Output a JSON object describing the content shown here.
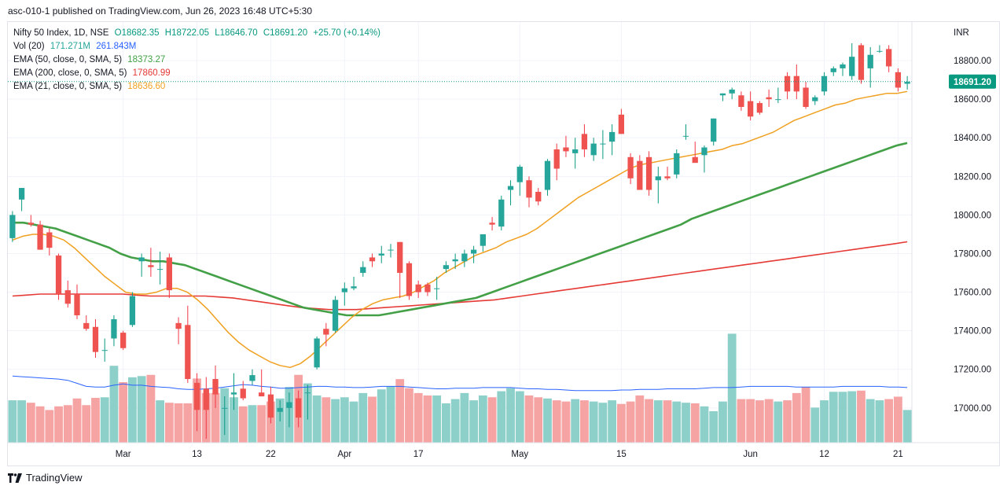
{
  "header": {
    "text": "asc-010-1 published on TradingView.com, Jun 26, 2023 16:48 UTC+5:30"
  },
  "footer": {
    "brand": "TradingView",
    "logo_icon": "tradingview-logo-icon"
  },
  "legend": {
    "symbol": {
      "label": "Nifty 50 Index, 1D, NSE",
      "open": "O18682.35",
      "high": "H18722.05",
      "low": "L18646.70",
      "close": "C18691.20",
      "change": "+25.70 (+0.14%)"
    },
    "vol": {
      "label": "Vol (20)",
      "value1": "171.271M",
      "value2": "261.843M"
    },
    "ema50": {
      "label": "EMA (50, close, 0, SMA, 5)",
      "value": "18373.27"
    },
    "ema200": {
      "label": "EMA (200, close, 0, SMA, 5)",
      "value": "17860.99"
    },
    "ema21": {
      "label": "EMA (21, close, 0, SMA, 5)",
      "value": "18636.60"
    }
  },
  "colors": {
    "up": "#26a69a",
    "down": "#ef5350",
    "up_wick": "#089981",
    "down_wick": "#f23645",
    "vol_up": "#8dcfc9",
    "vol_down": "#f5a3a3",
    "ema50": "#43a047",
    "ema200": "#e53935",
    "ema21": "#f0a020",
    "vol_ma": "#2962ff",
    "price_label_bg": "#089981"
  },
  "chart_data": {
    "type": "candlestick",
    "currency": "INR",
    "ylim": [
      16820,
      19000
    ],
    "y_ticks": [
      17000,
      17200,
      17400,
      17600,
      17800,
      18000,
      18200,
      18400,
      18600,
      18800
    ],
    "y_tick_labels": [
      "17000.00",
      "17200.00",
      "17400.00",
      "17600.00",
      "17800.00",
      "18000.00",
      "18200.00",
      "18400.00",
      "18600.00",
      "18800.00"
    ],
    "last_price": 18691.2,
    "last_price_label": "18691.20",
    "x_labels": [
      {
        "index": 12,
        "label": "Mar"
      },
      {
        "index": 20,
        "label": "13"
      },
      {
        "index": 28,
        "label": "22"
      },
      {
        "index": 36,
        "label": "Apr"
      },
      {
        "index": 44,
        "label": "17"
      },
      {
        "index": 55,
        "label": "May"
      },
      {
        "index": 66,
        "label": "15"
      },
      {
        "index": 80,
        "label": "Jun"
      },
      {
        "index": 88,
        "label": "12"
      },
      {
        "index": 96,
        "label": "21"
      }
    ],
    "candles": [
      {
        "o": 17880,
        "h": 18020,
        "l": 17860,
        "c": 18000,
        "v": 0.7
      },
      {
        "o": 18080,
        "h": 18140,
        "l": 18020,
        "c": 18140,
        "v": 0.7
      },
      {
        "o": 17960,
        "h": 18000,
        "l": 17940,
        "c": 17950,
        "v": 0.66
      },
      {
        "o": 17950,
        "h": 17970,
        "l": 17820,
        "c": 17820,
        "v": 0.6
      },
      {
        "o": 17910,
        "h": 17930,
        "l": 17790,
        "c": 17830,
        "v": 0.54
      },
      {
        "o": 17790,
        "h": 17800,
        "l": 17560,
        "c": 17590,
        "v": 0.6
      },
      {
        "o": 17610,
        "h": 17660,
        "l": 17520,
        "c": 17540,
        "v": 0.62
      },
      {
        "o": 17590,
        "h": 17640,
        "l": 17460,
        "c": 17480,
        "v": 0.73
      },
      {
        "o": 17440,
        "h": 17480,
        "l": 17400,
        "c": 17410,
        "v": 0.62
      },
      {
        "o": 17420,
        "h": 17460,
        "l": 17260,
        "c": 17290,
        "v": 0.74
      },
      {
        "o": 17300,
        "h": 17360,
        "l": 17240,
        "c": 17300,
        "v": 0.75
      },
      {
        "o": 17360,
        "h": 17480,
        "l": 17320,
        "c": 17460,
        "v": 1.27
      },
      {
        "o": 17390,
        "h": 17400,
        "l": 17300,
        "c": 17310,
        "v": 1.0
      },
      {
        "o": 17430,
        "h": 17600,
        "l": 17420,
        "c": 17580,
        "v": 1.08
      },
      {
        "o": 17760,
        "h": 17800,
        "l": 17680,
        "c": 17780,
        "v": 1.1
      },
      {
        "o": 17740,
        "h": 17830,
        "l": 17680,
        "c": 17730,
        "v": 1.12
      },
      {
        "o": 17720,
        "h": 17810,
        "l": 17640,
        "c": 17720,
        "v": 0.7
      },
      {
        "o": 17780,
        "h": 17800,
        "l": 17570,
        "c": 17610,
        "v": 0.66
      },
      {
        "o": 17440,
        "h": 17470,
        "l": 17330,
        "c": 17410,
        "v": 0.65
      },
      {
        "o": 17430,
        "h": 17530,
        "l": 17130,
        "c": 17150,
        "v": 0.65
      },
      {
        "o": 17130,
        "h": 17180,
        "l": 16880,
        "c": 16990,
        "v": 1.06
      },
      {
        "o": 17100,
        "h": 17160,
        "l": 16840,
        "c": 16990,
        "v": 0.82
      },
      {
        "o": 17150,
        "h": 17220,
        "l": 17000,
        "c": 17070,
        "v": 0.82
      },
      {
        "o": 17000,
        "h": 17060,
        "l": 16860,
        "c": 17000,
        "v": 0.9
      },
      {
        "o": 17070,
        "h": 17180,
        "l": 16990,
        "c": 17080,
        "v": 0.75
      },
      {
        "o": 17100,
        "h": 17140,
        "l": 17040,
        "c": 17050,
        "v": 0.6
      },
      {
        "o": 17140,
        "h": 17200,
        "l": 17120,
        "c": 17170,
        "v": 0.62
      },
      {
        "o": 17080,
        "h": 17200,
        "l": 17060,
        "c": 17060,
        "v": 0.62
      },
      {
        "o": 17070,
        "h": 17110,
        "l": 16920,
        "c": 16950,
        "v": 0.68
      },
      {
        "o": 16980,
        "h": 17040,
        "l": 16930,
        "c": 17000,
        "v": 0.73
      },
      {
        "o": 17000,
        "h": 17080,
        "l": 16900,
        "c": 17030,
        "v": 0.92
      },
      {
        "o": 17050,
        "h": 17090,
        "l": 16900,
        "c": 16950,
        "v": 1.12
      },
      {
        "o": 17080,
        "h": 17120,
        "l": 16940,
        "c": 17080,
        "v": 0.98
      },
      {
        "o": 17210,
        "h": 17370,
        "l": 17200,
        "c": 17360,
        "v": 0.78
      },
      {
        "o": 17410,
        "h": 17440,
        "l": 17320,
        "c": 17380,
        "v": 0.75
      },
      {
        "o": 17400,
        "h": 17580,
        "l": 17390,
        "c": 17560,
        "v": 0.72
      },
      {
        "o": 17600,
        "h": 17650,
        "l": 17530,
        "c": 17620,
        "v": 0.75
      },
      {
        "o": 17620,
        "h": 17680,
        "l": 17610,
        "c": 17630,
        "v": 0.68
      },
      {
        "o": 17700,
        "h": 17760,
        "l": 17680,
        "c": 17730,
        "v": 0.82
      },
      {
        "o": 17780,
        "h": 17800,
        "l": 17730,
        "c": 17760,
        "v": 0.76
      },
      {
        "o": 17790,
        "h": 17840,
        "l": 17750,
        "c": 17800,
        "v": 0.88
      },
      {
        "o": 17820,
        "h": 17850,
        "l": 17780,
        "c": 17820,
        "v": 0.93
      },
      {
        "o": 17860,
        "h": 17860,
        "l": 17570,
        "c": 17700,
        "v": 1.05
      },
      {
        "o": 17750,
        "h": 17760,
        "l": 17560,
        "c": 17580,
        "v": 0.9
      },
      {
        "o": 17640,
        "h": 17660,
        "l": 17570,
        "c": 17600,
        "v": 0.82
      },
      {
        "o": 17640,
        "h": 17650,
        "l": 17580,
        "c": 17600,
        "v": 0.78
      },
      {
        "o": 17620,
        "h": 17680,
        "l": 17560,
        "c": 17620,
        "v": 0.78
      },
      {
        "o": 17720,
        "h": 17760,
        "l": 17700,
        "c": 17740,
        "v": 0.65
      },
      {
        "o": 17760,
        "h": 17800,
        "l": 17720,
        "c": 17770,
        "v": 0.72
      },
      {
        "o": 17760,
        "h": 17820,
        "l": 17730,
        "c": 17800,
        "v": 0.82
      },
      {
        "o": 17800,
        "h": 17840,
        "l": 17750,
        "c": 17820,
        "v": 0.7
      },
      {
        "o": 17840,
        "h": 17900,
        "l": 17810,
        "c": 17900,
        "v": 0.78
      },
      {
        "o": 17960,
        "h": 17990,
        "l": 17920,
        "c": 17950,
        "v": 0.75
      },
      {
        "o": 17940,
        "h": 18100,
        "l": 17920,
        "c": 18080,
        "v": 0.85
      },
      {
        "o": 18130,
        "h": 18180,
        "l": 18050,
        "c": 18150,
        "v": 0.9
      },
      {
        "o": 18170,
        "h": 18260,
        "l": 18100,
        "c": 18250,
        "v": 0.85
      },
      {
        "o": 18180,
        "h": 18200,
        "l": 18040,
        "c": 18090,
        "v": 0.78
      },
      {
        "o": 18120,
        "h": 18140,
        "l": 18050,
        "c": 18070,
        "v": 0.75
      },
      {
        "o": 18130,
        "h": 18290,
        "l": 18100,
        "c": 18280,
        "v": 0.73
      },
      {
        "o": 18340,
        "h": 18370,
        "l": 18180,
        "c": 18240,
        "v": 0.7
      },
      {
        "o": 18350,
        "h": 18410,
        "l": 18300,
        "c": 18330,
        "v": 0.68
      },
      {
        "o": 18320,
        "h": 18400,
        "l": 18240,
        "c": 18340,
        "v": 0.72
      },
      {
        "o": 18420,
        "h": 18470,
        "l": 18300,
        "c": 18340,
        "v": 0.7
      },
      {
        "o": 18310,
        "h": 18400,
        "l": 18280,
        "c": 18370,
        "v": 0.68
      },
      {
        "o": 18370,
        "h": 18440,
        "l": 18290,
        "c": 18370,
        "v": 0.66
      },
      {
        "o": 18380,
        "h": 18470,
        "l": 18310,
        "c": 18430,
        "v": 0.7
      },
      {
        "o": 18520,
        "h": 18550,
        "l": 18420,
        "c": 18420,
        "v": 0.64
      },
      {
        "o": 18300,
        "h": 18320,
        "l": 18160,
        "c": 18190,
        "v": 0.68
      },
      {
        "o": 18280,
        "h": 18310,
        "l": 18140,
        "c": 18130,
        "v": 0.78
      },
      {
        "o": 18300,
        "h": 18330,
        "l": 18100,
        "c": 18130,
        "v": 0.72
      },
      {
        "o": 18180,
        "h": 18250,
        "l": 18060,
        "c": 18200,
        "v": 0.7
      },
      {
        "o": 18200,
        "h": 18250,
        "l": 18180,
        "c": 18190,
        "v": 0.7
      },
      {
        "o": 18210,
        "h": 18340,
        "l": 18190,
        "c": 18320,
        "v": 0.68
      },
      {
        "o": 18410,
        "h": 18470,
        "l": 18390,
        "c": 18410,
        "v": 0.66
      },
      {
        "o": 18300,
        "h": 18380,
        "l": 18280,
        "c": 18270,
        "v": 0.65
      },
      {
        "o": 18310,
        "h": 18360,
        "l": 18220,
        "c": 18350,
        "v": 0.6
      },
      {
        "o": 18380,
        "h": 18500,
        "l": 18360,
        "c": 18500,
        "v": 0.52
      },
      {
        "o": 18620,
        "h": 18630,
        "l": 18590,
        "c": 18630,
        "v": 0.68
      },
      {
        "o": 18630,
        "h": 18660,
        "l": 18600,
        "c": 18650,
        "v": 1.8
      },
      {
        "o": 18620,
        "h": 18640,
        "l": 18540,
        "c": 18560,
        "v": 0.72
      },
      {
        "o": 18590,
        "h": 18640,
        "l": 18490,
        "c": 18510,
        "v": 0.72
      },
      {
        "o": 18580,
        "h": 18590,
        "l": 18520,
        "c": 18530,
        "v": 0.7
      },
      {
        "o": 18610,
        "h": 18650,
        "l": 18560,
        "c": 18600,
        "v": 0.72
      },
      {
        "o": 18600,
        "h": 18660,
        "l": 18580,
        "c": 18600,
        "v": 0.68
      },
      {
        "o": 18720,
        "h": 18740,
        "l": 18600,
        "c": 18640,
        "v": 0.7
      },
      {
        "o": 18720,
        "h": 18780,
        "l": 18600,
        "c": 18640,
        "v": 0.82
      },
      {
        "o": 18660,
        "h": 18690,
        "l": 18550,
        "c": 18560,
        "v": 0.92
      },
      {
        "o": 18590,
        "h": 18620,
        "l": 18570,
        "c": 18610,
        "v": 0.58
      },
      {
        "o": 18640,
        "h": 18740,
        "l": 18620,
        "c": 18720,
        "v": 0.7
      },
      {
        "o": 18740,
        "h": 18770,
        "l": 18720,
        "c": 18760,
        "v": 0.84
      },
      {
        "o": 18760,
        "h": 18790,
        "l": 18720,
        "c": 18780,
        "v": 0.84
      },
      {
        "o": 18720,
        "h": 18890,
        "l": 18700,
        "c": 18820,
        "v": 0.85
      },
      {
        "o": 18880,
        "h": 18890,
        "l": 18680,
        "c": 18700,
        "v": 0.86
      },
      {
        "o": 18760,
        "h": 18870,
        "l": 18660,
        "c": 18830,
        "v": 0.72
      },
      {
        "o": 18850,
        "h": 18880,
        "l": 18840,
        "c": 18850,
        "v": 0.7
      },
      {
        "o": 18860,
        "h": 18880,
        "l": 18740,
        "c": 18770,
        "v": 0.72
      },
      {
        "o": 18740,
        "h": 18760,
        "l": 18640,
        "c": 18660,
        "v": 0.76
      },
      {
        "o": 18680,
        "h": 18720,
        "l": 18650,
        "c": 18690,
        "v": 0.54
      }
    ],
    "ema21": [
      17870,
      17890,
      17900,
      17900,
      17890,
      17870,
      17830,
      17780,
      17730,
      17680,
      17640,
      17600,
      17590,
      17590,
      17600,
      17620,
      17620,
      17600,
      17560,
      17510,
      17450,
      17390,
      17340,
      17300,
      17270,
      17240,
      17220,
      17210,
      17230,
      17270,
      17320,
      17370,
      17420,
      17470,
      17510,
      17540,
      17560,
      17570,
      17580,
      17600,
      17630,
      17660,
      17700,
      17730,
      17760,
      17790,
      17810,
      17830,
      17860,
      17880,
      17900,
      17930,
      17970,
      18010,
      18050,
      18090,
      18120,
      18150,
      18180,
      18210,
      18240,
      18260,
      18270,
      18280,
      18290,
      18300,
      18310,
      18320,
      18330,
      18340,
      18360,
      18370,
      18390,
      18410,
      18430,
      18460,
      18490,
      18510,
      18530,
      18550,
      18570,
      18580,
      18600,
      18610,
      18620,
      18630,
      18630,
      18640
    ],
    "ema50": [
      17960,
      17960,
      17950,
      17940,
      17930,
      17910,
      17890,
      17870,
      17850,
      17830,
      17800,
      17780,
      17770,
      17760,
      17760,
      17750,
      17740,
      17720,
      17700,
      17680,
      17660,
      17640,
      17620,
      17600,
      17580,
      17560,
      17540,
      17520,
      17510,
      17500,
      17490,
      17480,
      17480,
      17480,
      17480,
      17490,
      17500,
      17510,
      17520,
      17530,
      17540,
      17550,
      17560,
      17570,
      17590,
      17610,
      17630,
      17650,
      17670,
      17690,
      17710,
      17730,
      17750,
      17770,
      17790,
      17810,
      17830,
      17850,
      17870,
      17890,
      17910,
      17930,
      17950,
      17980,
      18000,
      18020,
      18040,
      18060,
      18080,
      18100,
      18120,
      18140,
      18160,
      18180,
      18200,
      18220,
      18240,
      18260,
      18280,
      18300,
      18320,
      18340,
      18360,
      18373
    ],
    "ema200": [
      17580,
      17585,
      17590,
      17590,
      17590,
      17590,
      17590,
      17590,
      17590,
      17585,
      17580,
      17580,
      17580,
      17580,
      17580,
      17575,
      17570,
      17560,
      17550,
      17540,
      17530,
      17520,
      17515,
      17510,
      17510,
      17510,
      17515,
      17520,
      17525,
      17530,
      17535,
      17540,
      17545,
      17550,
      17555,
      17560,
      17570,
      17580,
      17590,
      17600,
      17610,
      17620,
      17630,
      17640,
      17650,
      17660,
      17670,
      17680,
      17690,
      17700,
      17710,
      17720,
      17730,
      17740,
      17750,
      17760,
      17770,
      17780,
      17790,
      17800,
      17810,
      17820,
      17830,
      17840,
      17850,
      17861
    ],
    "vol_ma": [
      1.1,
      1.09,
      1.08,
      1.07,
      1.06,
      1.05,
      1.03,
      0.98,
      0.93,
      0.92,
      0.92,
      0.95,
      0.97,
      0.95,
      0.95,
      0.93,
      0.92,
      0.91,
      0.89,
      0.88,
      0.88,
      0.89,
      0.9,
      0.92,
      0.94,
      0.96,
      0.95,
      0.93,
      0.92,
      0.9,
      0.9,
      0.91,
      0.92,
      0.93,
      0.93,
      0.92,
      0.92,
      0.91,
      0.91,
      0.92,
      0.93,
      0.93,
      0.93,
      0.92,
      0.91,
      0.9,
      0.89,
      0.89,
      0.9,
      0.9,
      0.9,
      0.91,
      0.91,
      0.91,
      0.91,
      0.9,
      0.89,
      0.89,
      0.88,
      0.88,
      0.87,
      0.86,
      0.86,
      0.86,
      0.86,
      0.86,
      0.87,
      0.87,
      0.88,
      0.88,
      0.88,
      0.89,
      0.89,
      0.89,
      0.89,
      0.9,
      0.91,
      0.91,
      0.91,
      0.92,
      0.93,
      0.93,
      0.93,
      0.93,
      0.93,
      0.92,
      0.92,
      0.92,
      0.92,
      0.92,
      0.93,
      0.93,
      0.93,
      0.93,
      0.93,
      0.92,
      0.92,
      0.91
    ]
  }
}
